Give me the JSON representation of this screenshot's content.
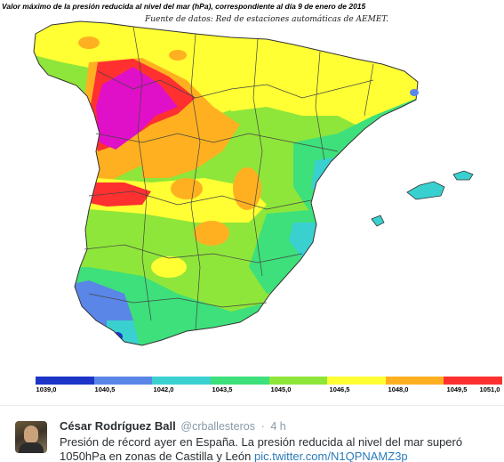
{
  "map": {
    "title": "Valor máximo de la presión reducida al nivel del mar (hPa), correspondiente al día 9 de enero de 2015",
    "source": "Fuente de datos: Red de estaciones automáticas de AEMET.",
    "legend": {
      "labels": [
        "1039,0",
        "1040,5",
        "1042,0",
        "1043,5",
        "1045,0",
        "1046,5",
        "1048,0",
        "1049,5",
        "1051,0"
      ],
      "colors": [
        "#1c35c8",
        "#5a86e8",
        "#3ad0d0",
        "#3de07a",
        "#8fe63a",
        "#ffff33",
        "#ffb020",
        "#ff3030",
        "#e010c8"
      ]
    }
  },
  "tweet": {
    "name": "César Rodríguez Ball",
    "handle": "@crballesteros",
    "separator": "·",
    "time": "4 h",
    "text": "Presión de récord ayer en España. La presión reducida al nivel del mar  superó 1050hPa en zonas de Castilla y León ",
    "link": "pic.twitter.com/N1QPNAMZ3p"
  }
}
